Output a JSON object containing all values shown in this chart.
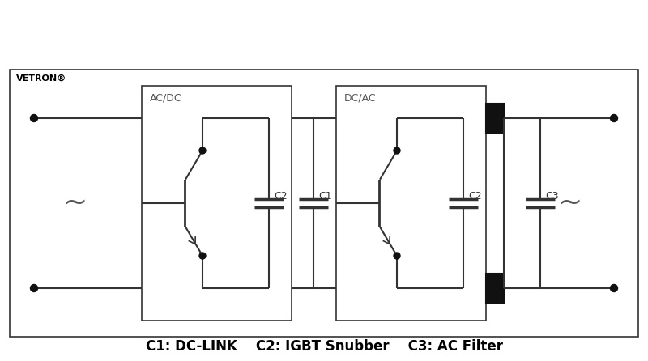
{
  "background_color": "#ffffff",
  "outer_bg": "#f0f0f0",
  "title": "VETRON®",
  "bottom_label": "C1: DC-LINK    C2: IGBT Snubber    C3: AC Filter",
  "line_color": "#333333",
  "fill_color": "#111111",
  "box1_label": "AC/DC",
  "box2_label": "DC/AC"
}
